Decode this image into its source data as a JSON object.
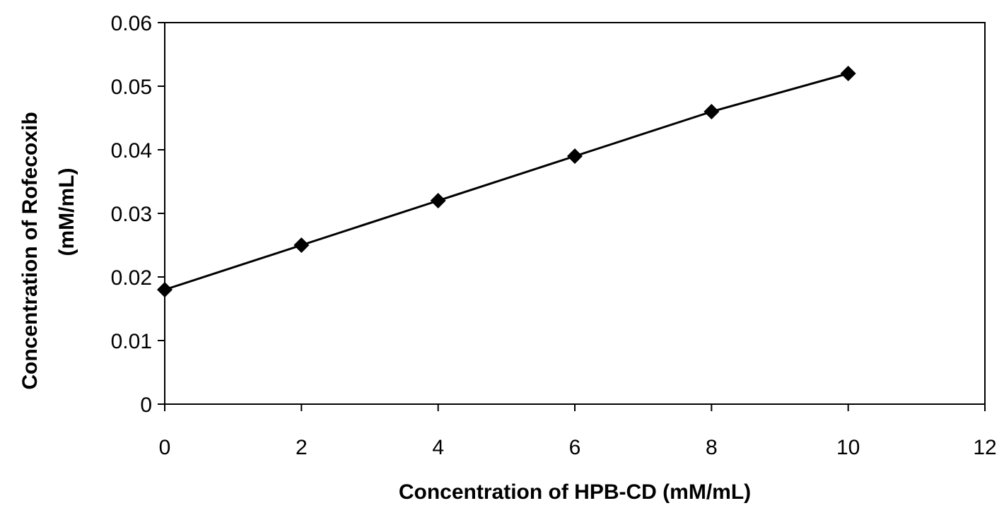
{
  "chart_data": {
    "type": "line",
    "title": "",
    "xlabel": "Concentration of HPB-CD (mM/mL)",
    "ylabel_line1": "Concentration of Rofecoxib",
    "ylabel_line2": "(mM/mL)",
    "xlim": [
      0,
      12
    ],
    "ylim": [
      0,
      0.06
    ],
    "x_ticks": [
      0,
      2,
      4,
      6,
      8,
      10,
      12
    ],
    "y_ticks": [
      0,
      0.01,
      0.02,
      0.03,
      0.04,
      0.05,
      0.06
    ],
    "x_tick_labels": [
      "0",
      "2",
      "4",
      "6",
      "8",
      "10",
      "12"
    ],
    "y_tick_labels": [
      "0",
      "0.01",
      "0.02",
      "0.03",
      "0.04",
      "0.05",
      "0.06"
    ],
    "grid": false,
    "legend": "none",
    "marker": "diamond",
    "colors": {
      "line": "#000000",
      "marker": "#000000",
      "axis": "#000000"
    },
    "series": [
      {
        "x": [
          0,
          2,
          4,
          6,
          8,
          10
        ],
        "y": [
          0.018,
          0.025,
          0.032,
          0.039,
          0.046,
          0.052
        ]
      }
    ]
  }
}
